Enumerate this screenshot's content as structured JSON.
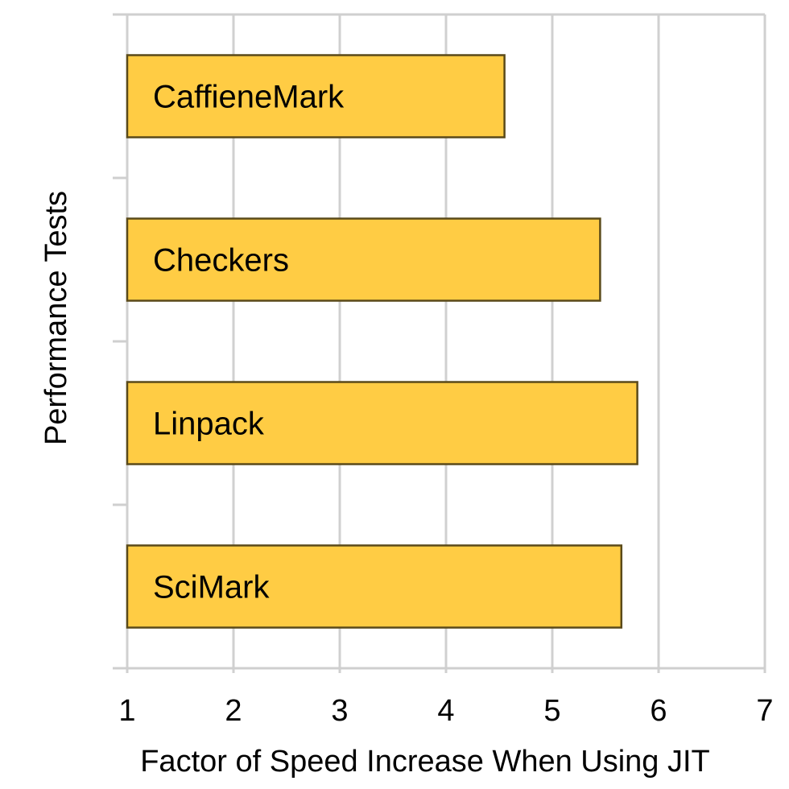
{
  "chart_data": {
    "type": "bar",
    "orientation": "horizontal",
    "categories": [
      "CaffieneMark",
      "Checkers",
      "Linpack",
      "SciMark"
    ],
    "values": [
      4.55,
      5.45,
      5.8,
      5.65
    ],
    "xlabel": "Factor of Speed Increase When Using JIT",
    "ylabel": "Performance Tests",
    "xlim": [
      1,
      7
    ],
    "xticks": [
      "1",
      "2",
      "3",
      "4",
      "5",
      "6",
      "7"
    ],
    "grid": true,
    "legend": "none",
    "bar_color": "#FFCC44",
    "bar_label_position": "inside-left"
  }
}
